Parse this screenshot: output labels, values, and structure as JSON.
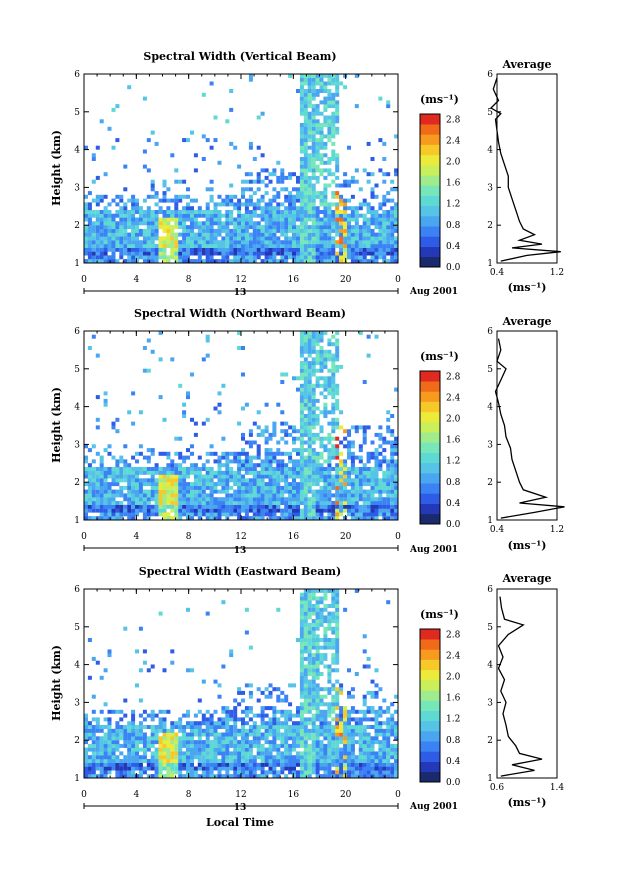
{
  "figure": {
    "x_axis_label": "Local Time",
    "y_axis_label": "Height (km)",
    "date_label": "Aug 2001",
    "day_label": "13",
    "colorbar_unit": "(ms⁻¹)",
    "avg_unit": "(ms⁻¹)",
    "avg_title": "Average",
    "colormap": [
      "#1a2a6c",
      "#2339b8",
      "#2e5ce6",
      "#3b82f5",
      "#4aa6f0",
      "#55c4e6",
      "#5fd9d4",
      "#77e6b8",
      "#a0ec8c",
      "#c9ef5a",
      "#ecea3a",
      "#f7c928",
      "#f79a1e",
      "#f06a1a",
      "#e02a20"
    ]
  },
  "chart_data": [
    {
      "type": "heatmap",
      "title": "Spectral Width (Vertical Beam)",
      "xlabel": "",
      "ylabel": "Height (km)",
      "xlim": [
        0,
        24
      ],
      "ylim": [
        1,
        6
      ],
      "x_ticks": [
        "0",
        "4",
        "8",
        "12",
        "16",
        "20",
        "0"
      ],
      "y_ticks": [
        "1",
        "2",
        "3",
        "4",
        "5",
        "6"
      ],
      "colorbar": {
        "ticks": [
          "0.0",
          "0.4",
          "0.8",
          "1.2",
          "1.6",
          "2.0",
          "2.4",
          "2.8"
        ],
        "range": [
          0,
          2.9
        ]
      },
      "average_profile": {
        "xlim": [
          0.4,
          1.2
        ],
        "x_ticks": [
          "0.4",
          "1.2"
        ],
        "points": [
          [
            0.45,
            1.05
          ],
          [
            0.8,
            1.2
          ],
          [
            1.25,
            1.3
          ],
          [
            0.6,
            1.4
          ],
          [
            1.0,
            1.5
          ],
          [
            0.7,
            1.6
          ],
          [
            0.9,
            1.75
          ],
          [
            0.75,
            1.9
          ],
          [
            0.7,
            2.1
          ],
          [
            0.65,
            2.4
          ],
          [
            0.6,
            2.7
          ],
          [
            0.55,
            3.0
          ],
          [
            0.55,
            3.3
          ],
          [
            0.5,
            3.6
          ],
          [
            0.45,
            3.9
          ],
          [
            0.42,
            4.2
          ],
          [
            0.4,
            4.5
          ],
          [
            0.38,
            4.8
          ],
          [
            0.45,
            4.95
          ],
          [
            0.32,
            5.1
          ],
          [
            0.42,
            5.3
          ],
          [
            0.35,
            5.6
          ],
          [
            0.4,
            5.9
          ]
        ]
      }
    },
    {
      "type": "heatmap",
      "title": "Spectral Width (Northward Beam)",
      "xlabel": "",
      "ylabel": "Height (km)",
      "xlim": [
        0,
        24
      ],
      "ylim": [
        1,
        6
      ],
      "x_ticks": [
        "0",
        "4",
        "8",
        "12",
        "16",
        "20",
        "0"
      ],
      "y_ticks": [
        "1",
        "2",
        "3",
        "4",
        "5",
        "6"
      ],
      "colorbar": {
        "ticks": [
          "0.0",
          "0.4",
          "0.8",
          "1.2",
          "1.6",
          "2.0",
          "2.4",
          "2.8"
        ],
        "range": [
          0,
          2.9
        ]
      },
      "average_profile": {
        "xlim": [
          0.4,
          1.2
        ],
        "x_ticks": [
          "0.4",
          "1.2"
        ],
        "points": [
          [
            0.45,
            1.05
          ],
          [
            0.9,
            1.2
          ],
          [
            1.3,
            1.35
          ],
          [
            0.7,
            1.45
          ],
          [
            1.05,
            1.6
          ],
          [
            0.75,
            1.8
          ],
          [
            0.7,
            2.0
          ],
          [
            0.65,
            2.3
          ],
          [
            0.6,
            2.6
          ],
          [
            0.58,
            2.9
          ],
          [
            0.52,
            3.2
          ],
          [
            0.5,
            3.5
          ],
          [
            0.45,
            3.8
          ],
          [
            0.42,
            4.1
          ],
          [
            0.38,
            4.4
          ],
          [
            0.45,
            4.7
          ],
          [
            0.52,
            5.0
          ],
          [
            0.4,
            5.2
          ],
          [
            0.45,
            5.5
          ],
          [
            0.42,
            5.8
          ]
        ]
      }
    },
    {
      "type": "heatmap",
      "title": "Spectral Width (Eastward Beam)",
      "xlabel": "Local Time",
      "ylabel": "Height (km)",
      "xlim": [
        0,
        24
      ],
      "ylim": [
        1,
        6
      ],
      "x_ticks": [
        "0",
        "4",
        "8",
        "12",
        "16",
        "20",
        "0"
      ],
      "y_ticks": [
        "1",
        "2",
        "3",
        "4",
        "5",
        "6"
      ],
      "colorbar": {
        "ticks": [
          "0.0",
          "0.4",
          "0.8",
          "1.2",
          "1.6",
          "2.0",
          "2.4",
          "2.8"
        ],
        "range": [
          0,
          2.9
        ]
      },
      "average_profile": {
        "xlim": [
          0.6,
          1.4
        ],
        "x_ticks": [
          "0.6",
          "1.4"
        ],
        "points": [
          [
            0.65,
            1.05
          ],
          [
            1.1,
            1.2
          ],
          [
            0.8,
            1.35
          ],
          [
            1.2,
            1.5
          ],
          [
            0.9,
            1.65
          ],
          [
            0.85,
            1.85
          ],
          [
            0.75,
            2.1
          ],
          [
            0.72,
            2.4
          ],
          [
            0.68,
            2.7
          ],
          [
            0.72,
            3.0
          ],
          [
            0.65,
            3.3
          ],
          [
            0.7,
            3.6
          ],
          [
            0.62,
            3.9
          ],
          [
            0.68,
            4.2
          ],
          [
            0.62,
            4.5
          ],
          [
            0.75,
            4.8
          ],
          [
            0.95,
            5.05
          ],
          [
            0.7,
            5.2
          ],
          [
            0.66,
            5.5
          ],
          [
            0.64,
            5.8
          ]
        ]
      }
    }
  ]
}
